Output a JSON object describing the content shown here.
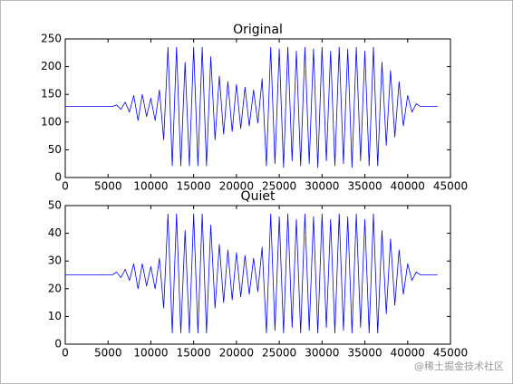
{
  "chart_data": [
    {
      "type": "line",
      "title": "Original",
      "color": "#0000ff",
      "xlim": [
        0,
        45000
      ],
      "xticks": [
        0,
        5000,
        10000,
        15000,
        20000,
        25000,
        30000,
        35000,
        40000,
        45000
      ],
      "ylim": [
        0,
        250
      ],
      "yticks": [
        0,
        50,
        100,
        150,
        200,
        250
      ],
      "x": [
        0,
        500,
        1000,
        1500,
        2000,
        2500,
        3000,
        3500,
        4000,
        4500,
        5000,
        5500,
        6000,
        6500,
        7000,
        7500,
        8000,
        8500,
        9000,
        9500,
        10000,
        10500,
        11000,
        11500,
        12000,
        12500,
        13000,
        13500,
        14000,
        14500,
        15000,
        15500,
        16000,
        16500,
        17000,
        17500,
        18000,
        18500,
        19000,
        19500,
        20000,
        20500,
        21000,
        21500,
        22000,
        22500,
        23000,
        23500,
        24000,
        24500,
        25000,
        25500,
        26000,
        26500,
        27000,
        27500,
        28000,
        28500,
        29000,
        29500,
        30000,
        30500,
        31000,
        31500,
        32000,
        32500,
        33000,
        33500,
        34000,
        34500,
        35000,
        35500,
        36000,
        36500,
        37000,
        37500,
        38000,
        38500,
        39000,
        39500,
        40000,
        40500,
        41000,
        41500,
        42000,
        42500,
        43000,
        43500
      ],
      "values": [
        128,
        128,
        128,
        128,
        128,
        128,
        128,
        128,
        128,
        128,
        128,
        128,
        131,
        123,
        136,
        118,
        148,
        103,
        150,
        110,
        143,
        103,
        158,
        68,
        235,
        21,
        235,
        21,
        208,
        21,
        235,
        21,
        235,
        21,
        218,
        68,
        183,
        78,
        173,
        83,
        168,
        88,
        163,
        93,
        158,
        98,
        178,
        21,
        235,
        25,
        232,
        18,
        235,
        30,
        228,
        21,
        235,
        25,
        232,
        18,
        235,
        30,
        228,
        21,
        235,
        25,
        232,
        18,
        235,
        30,
        228,
        21,
        235,
        21,
        208,
        58,
        193,
        73,
        173,
        93,
        148,
        118,
        133,
        128,
        128,
        128,
        128,
        128
      ]
    },
    {
      "type": "line",
      "title": "Quiet",
      "color": "#0000ff",
      "xlim": [
        0,
        45000
      ],
      "xticks": [
        0,
        5000,
        10000,
        15000,
        20000,
        25000,
        30000,
        35000,
        40000,
        45000
      ],
      "ylim": [
        0,
        50
      ],
      "yticks": [
        0,
        10,
        20,
        30,
        40,
        50
      ],
      "x": [
        0,
        500,
        1000,
        1500,
        2000,
        2500,
        3000,
        3500,
        4000,
        4500,
        5000,
        5500,
        6000,
        6500,
        7000,
        7500,
        8000,
        8500,
        9000,
        9500,
        10000,
        10500,
        11000,
        11500,
        12000,
        12500,
        13000,
        13500,
        14000,
        14500,
        15000,
        15500,
        16000,
        16500,
        17000,
        17500,
        18000,
        18500,
        19000,
        19500,
        20000,
        20500,
        21000,
        21500,
        22000,
        22500,
        23000,
        23500,
        24000,
        24500,
        25000,
        25500,
        26000,
        26500,
        27000,
        27500,
        28000,
        28500,
        29000,
        29500,
        30000,
        30500,
        31000,
        31500,
        32000,
        32500,
        33000,
        33500,
        34000,
        34500,
        35000,
        35500,
        36000,
        36500,
        37000,
        37500,
        38000,
        38500,
        39000,
        39500,
        40000,
        40500,
        41000,
        41500,
        42000,
        42500,
        43000,
        43500
      ],
      "values": [
        25,
        25,
        25,
        25,
        25,
        25,
        25,
        25,
        25,
        25,
        25,
        25,
        26,
        24,
        27,
        23,
        29,
        20,
        29,
        21,
        28,
        20,
        31,
        13,
        47,
        4,
        47,
        4,
        41,
        4,
        47,
        4,
        47,
        4,
        43,
        13,
        36,
        15,
        34,
        16,
        33,
        17,
        32,
        18,
        31,
        19,
        35,
        4,
        47,
        5,
        46,
        4,
        47,
        6,
        45,
        4,
        47,
        5,
        46,
        4,
        47,
        6,
        45,
        4,
        47,
        5,
        46,
        4,
        47,
        6,
        45,
        4,
        47,
        4,
        41,
        11,
        38,
        14,
        34,
        18,
        29,
        23,
        26,
        25,
        25,
        25,
        25,
        25
      ]
    }
  ],
  "watermark": "@稀土掘金技术社区"
}
